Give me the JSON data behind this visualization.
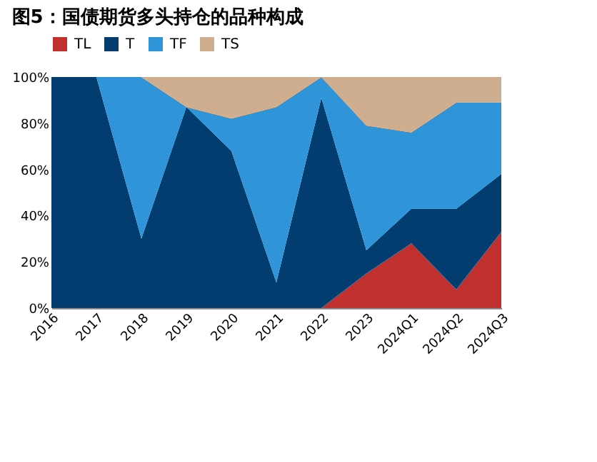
{
  "chart_data": {
    "type": "area",
    "title": "图5：国债期货多头持仓的品种构成",
    "stacked": true,
    "legend": "top",
    "categories": [
      "2016",
      "2017",
      "2018",
      "2019",
      "2020",
      "2021",
      "2022",
      "2023",
      "2024Q1",
      "2024Q2",
      "2024Q3"
    ],
    "ylim": [
      0,
      100
    ],
    "yticks": [
      {
        "value": 0,
        "label": "0%"
      },
      {
        "value": 20,
        "label": "20%"
      },
      {
        "value": 40,
        "label": "40%"
      },
      {
        "value": 60,
        "label": "60%"
      },
      {
        "value": 80,
        "label": "80%"
      },
      {
        "value": 100,
        "label": "100%"
      }
    ],
    "series": [
      {
        "name": "TL",
        "color": "#c0302f",
        "values": [
          0,
          0,
          0,
          0,
          0,
          0,
          0,
          15,
          28,
          8,
          33
        ]
      },
      {
        "name": "T",
        "color": "#033d70",
        "values": [
          100,
          100,
          30,
          87,
          68,
          11,
          91,
          10,
          15,
          35,
          25
        ]
      },
      {
        "name": "TF",
        "color": "#2f95d8",
        "values": [
          0,
          0,
          70,
          0,
          14,
          76,
          9,
          54,
          33,
          46,
          31
        ]
      },
      {
        "name": "TS",
        "color": "#cfae8f",
        "values": [
          0,
          0,
          0,
          13,
          18,
          13,
          0,
          21,
          24,
          11,
          11
        ]
      }
    ]
  }
}
